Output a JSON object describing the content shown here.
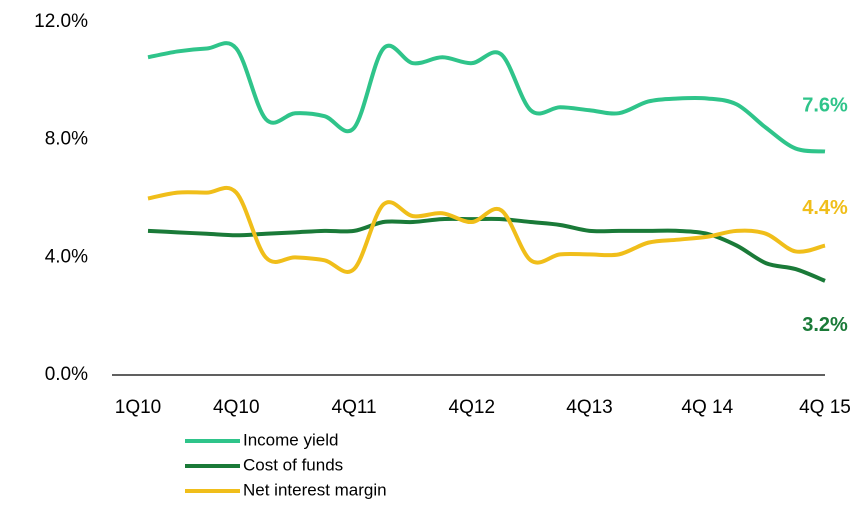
{
  "chart_data": {
    "type": "line",
    "categories": [
      "1Q10",
      null,
      null,
      "4Q10",
      null,
      null,
      null,
      "4Q11",
      null,
      null,
      null,
      "4Q12",
      null,
      null,
      null,
      "4Q13",
      null,
      null,
      null,
      "4Q 14",
      null,
      null,
      null,
      "4Q 15"
    ],
    "series": [
      {
        "name": "Income yield",
        "color": "#2fc48a",
        "values": [
          10.8,
          11.0,
          11.1,
          11.1,
          8.7,
          8.9,
          8.8,
          8.4,
          11.1,
          10.6,
          10.8,
          10.6,
          10.9,
          9.0,
          9.1,
          9.0,
          8.9,
          9.3,
          9.4,
          9.4,
          9.2,
          8.4,
          7.7,
          7.6
        ],
        "value_labels": [
          null,
          null,
          null,
          null,
          null,
          null,
          null,
          null,
          null,
          null,
          null,
          null,
          null,
          null,
          null,
          null,
          null,
          null,
          null,
          null,
          null,
          null,
          null,
          "7.6%"
        ]
      },
      {
        "name": "Cost of funds",
        "color": "#1a7a38",
        "values": [
          4.9,
          4.85,
          4.8,
          4.75,
          4.8,
          4.85,
          4.9,
          4.9,
          5.2,
          5.2,
          5.3,
          5.3,
          5.3,
          5.2,
          5.1,
          4.9,
          4.9,
          4.9,
          4.9,
          4.8,
          4.4,
          3.8,
          3.6,
          3.2
        ],
        "value_labels": [
          null,
          null,
          null,
          null,
          null,
          null,
          null,
          null,
          null,
          null,
          null,
          null,
          null,
          null,
          null,
          null,
          null,
          null,
          null,
          null,
          null,
          null,
          null,
          "3.2%"
        ]
      },
      {
        "name": "Net interest margin",
        "color": "#f0be1a",
        "values": [
          6.0,
          6.2,
          6.2,
          6.2,
          4.0,
          4.0,
          3.9,
          3.6,
          5.8,
          5.4,
          5.5,
          5.2,
          5.6,
          3.9,
          4.1,
          4.1,
          4.1,
          4.5,
          4.6,
          4.7,
          4.9,
          4.8,
          4.2,
          4.4
        ],
        "value_labels": [
          null,
          null,
          null,
          null,
          null,
          null,
          null,
          null,
          null,
          null,
          null,
          null,
          null,
          null,
          null,
          null,
          null,
          null,
          null,
          null,
          null,
          null,
          null,
          "4.4%"
        ]
      }
    ],
    "ylim": [
      0,
      12
    ],
    "yticks": [
      {
        "value": 0,
        "label": "0.0%"
      },
      {
        "value": 4,
        "label": "4.0%"
      },
      {
        "value": 8,
        "label": "8.0%"
      },
      {
        "value": 12,
        "label": "12.0%"
      }
    ],
    "grid": false
  }
}
